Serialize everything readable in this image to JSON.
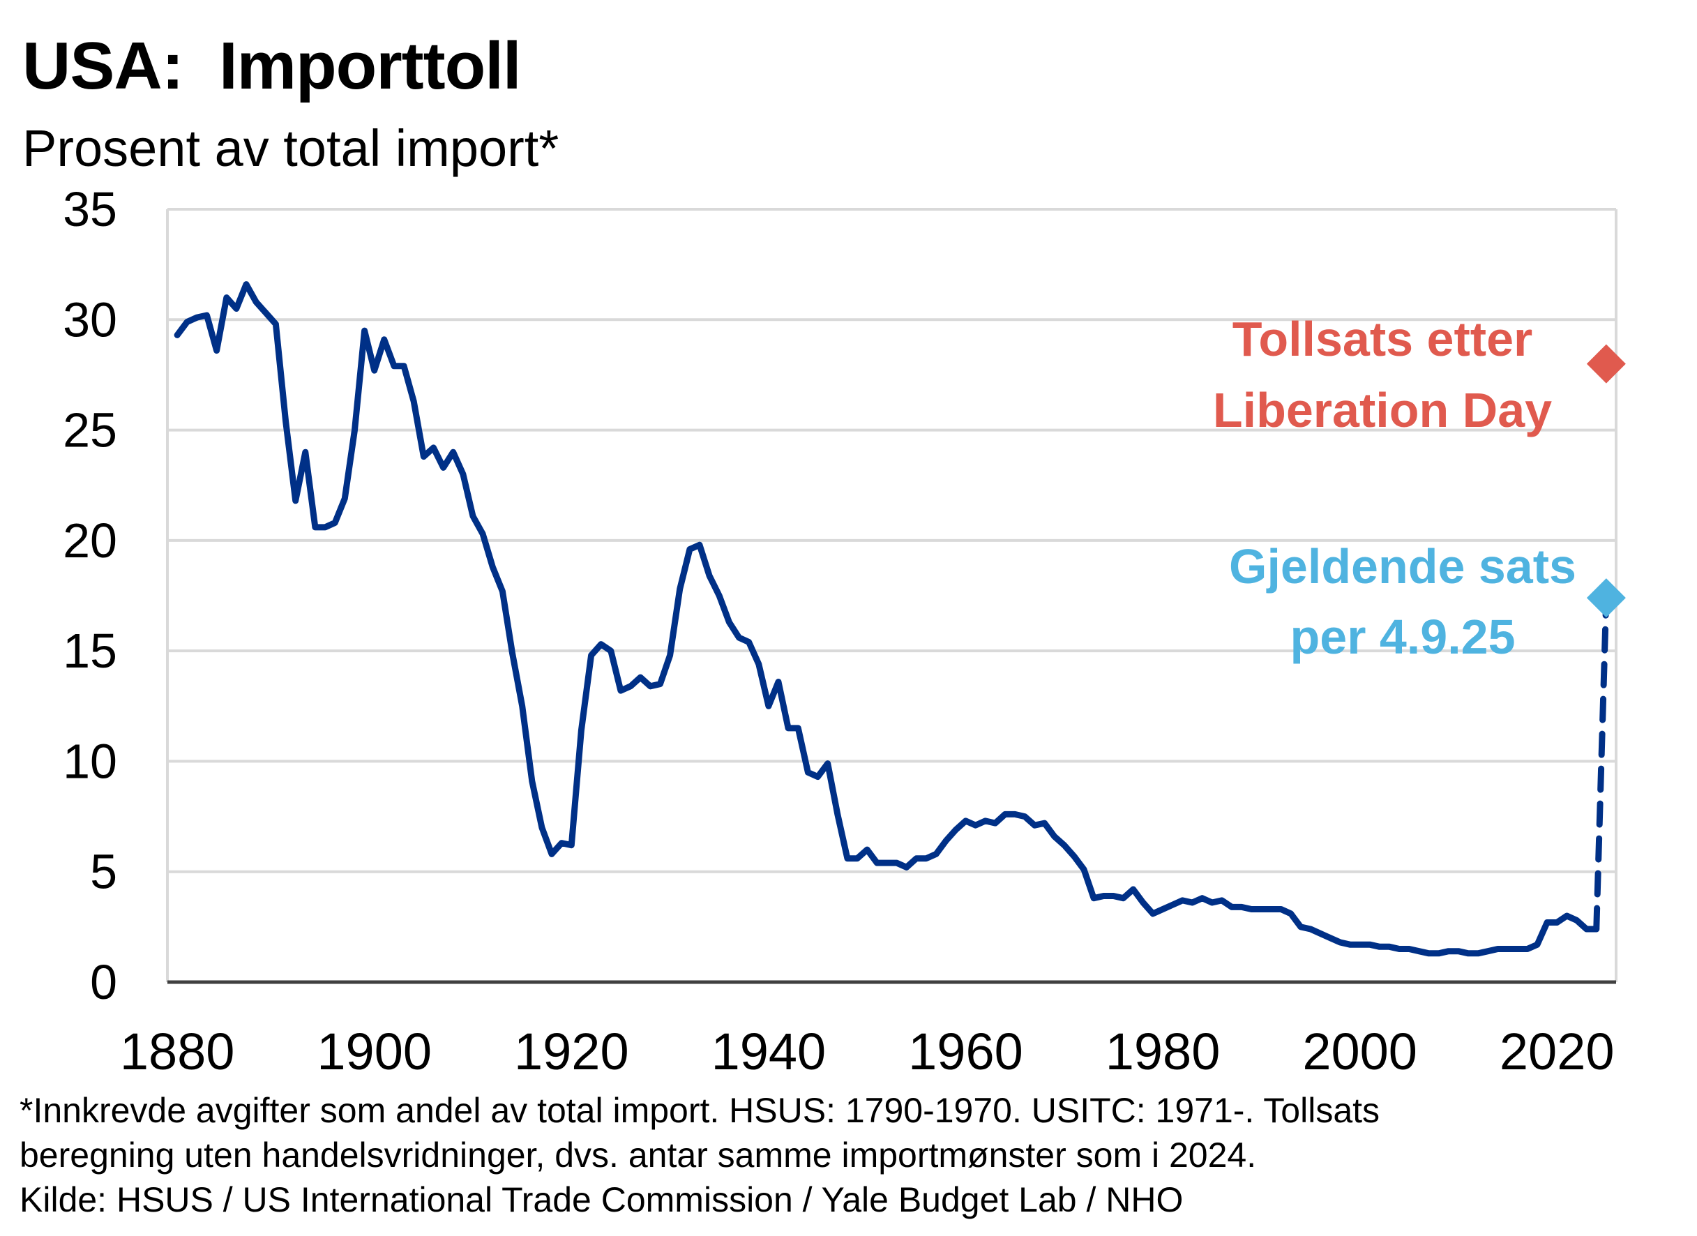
{
  "chart_data": {
    "type": "line",
    "title": "USA:  Importtoll",
    "subtitle": "Prosent av total import*",
    "xlim": [
      1880,
      2025
    ],
    "ylim": [
      0,
      35
    ],
    "x_ticks": [
      "1880",
      "1900",
      "1920",
      "1940",
      "1960",
      "1980",
      "2000",
      "2020"
    ],
    "y_ticks": [
      "0",
      "5",
      "10",
      "15",
      "20",
      "25",
      "30",
      "35"
    ],
    "grid": true,
    "series": [
      {
        "color": "#003087",
        "points": [
          [
            1880,
            29.3
          ],
          [
            1881,
            29.9
          ],
          [
            1882,
            30.1
          ],
          [
            1883,
            30.2
          ],
          [
            1884,
            28.6
          ],
          [
            1885,
            31.0
          ],
          [
            1886,
            30.5
          ],
          [
            1887,
            31.6
          ],
          [
            1888,
            30.8
          ],
          [
            1889,
            30.3
          ],
          [
            1890,
            29.8
          ],
          [
            1891,
            25.4
          ],
          [
            1892,
            21.8
          ],
          [
            1893,
            24.0
          ],
          [
            1894,
            20.6
          ],
          [
            1895,
            20.6
          ],
          [
            1896,
            20.8
          ],
          [
            1897,
            21.9
          ],
          [
            1898,
            25.0
          ],
          [
            1899,
            29.5
          ],
          [
            1900,
            27.7
          ],
          [
            1901,
            29.1
          ],
          [
            1902,
            27.9
          ],
          [
            1903,
            27.9
          ],
          [
            1904,
            26.3
          ],
          [
            1905,
            23.8
          ],
          [
            1906,
            24.2
          ],
          [
            1907,
            23.3
          ],
          [
            1908,
            24.0
          ],
          [
            1909,
            23.0
          ],
          [
            1910,
            21.1
          ],
          [
            1911,
            20.3
          ],
          [
            1912,
            18.8
          ],
          [
            1913,
            17.7
          ],
          [
            1914,
            14.9
          ],
          [
            1915,
            12.5
          ],
          [
            1916,
            9.1
          ],
          [
            1917,
            7.0
          ],
          [
            1918,
            5.8
          ],
          [
            1919,
            6.3
          ],
          [
            1920,
            6.2
          ],
          [
            1921,
            11.4
          ],
          [
            1922,
            14.8
          ],
          [
            1923,
            15.3
          ],
          [
            1924,
            15.0
          ],
          [
            1925,
            13.2
          ],
          [
            1926,
            13.4
          ],
          [
            1927,
            13.8
          ],
          [
            1928,
            13.4
          ],
          [
            1929,
            13.5
          ],
          [
            1930,
            14.8
          ],
          [
            1931,
            17.8
          ],
          [
            1932,
            19.6
          ],
          [
            1933,
            19.8
          ],
          [
            1934,
            18.4
          ],
          [
            1935,
            17.5
          ],
          [
            1936,
            16.3
          ],
          [
            1937,
            15.6
          ],
          [
            1938,
            15.4
          ],
          [
            1939,
            14.4
          ],
          [
            1940,
            12.5
          ],
          [
            1941,
            13.6
          ],
          [
            1942,
            11.5
          ],
          [
            1943,
            11.5
          ],
          [
            1944,
            9.5
          ],
          [
            1945,
            9.3
          ],
          [
            1946,
            9.9
          ],
          [
            1947,
            7.6
          ],
          [
            1948,
            5.6
          ],
          [
            1949,
            5.6
          ],
          [
            1950,
            6.0
          ],
          [
            1951,
            5.4
          ],
          [
            1952,
            5.4
          ],
          [
            1953,
            5.4
          ],
          [
            1954,
            5.2
          ],
          [
            1955,
            5.6
          ],
          [
            1956,
            5.6
          ],
          [
            1957,
            5.8
          ],
          [
            1958,
            6.4
          ],
          [
            1959,
            6.9
          ],
          [
            1960,
            7.3
          ],
          [
            1961,
            7.1
          ],
          [
            1962,
            7.3
          ],
          [
            1963,
            7.2
          ],
          [
            1964,
            7.6
          ],
          [
            1965,
            7.6
          ],
          [
            1966,
            7.5
          ],
          [
            1967,
            7.1
          ],
          [
            1968,
            7.2
          ],
          [
            1969,
            6.6
          ],
          [
            1970,
            6.2
          ],
          [
            1971,
            5.7
          ],
          [
            1972,
            5.1
          ],
          [
            1973,
            3.8
          ],
          [
            1974,
            3.9
          ],
          [
            1975,
            3.9
          ],
          [
            1976,
            3.8
          ],
          [
            1977,
            4.2
          ],
          [
            1978,
            3.6
          ],
          [
            1979,
            3.1
          ],
          [
            1980,
            3.3
          ],
          [
            1981,
            3.5
          ],
          [
            1982,
            3.7
          ],
          [
            1983,
            3.6
          ],
          [
            1984,
            3.8
          ],
          [
            1985,
            3.6
          ],
          [
            1986,
            3.7
          ],
          [
            1987,
            3.4
          ],
          [
            1988,
            3.4
          ],
          [
            1989,
            3.3
          ],
          [
            1990,
            3.3
          ],
          [
            1991,
            3.3
          ],
          [
            1992,
            3.3
          ],
          [
            1993,
            3.1
          ],
          [
            1994,
            2.5
          ],
          [
            1995,
            2.4
          ],
          [
            1996,
            2.2
          ],
          [
            1997,
            2.0
          ],
          [
            1998,
            1.8
          ],
          [
            1999,
            1.7
          ],
          [
            2000,
            1.7
          ],
          [
            2001,
            1.7
          ],
          [
            2002,
            1.6
          ],
          [
            2003,
            1.6
          ],
          [
            2004,
            1.5
          ],
          [
            2005,
            1.5
          ],
          [
            2006,
            1.4
          ],
          [
            2007,
            1.3
          ],
          [
            2008,
            1.3
          ],
          [
            2009,
            1.4
          ],
          [
            2010,
            1.4
          ],
          [
            2011,
            1.3
          ],
          [
            2012,
            1.3
          ],
          [
            2013,
            1.4
          ],
          [
            2014,
            1.5
          ],
          [
            2015,
            1.5
          ],
          [
            2016,
            1.5
          ],
          [
            2017,
            1.5
          ],
          [
            2018,
            1.7
          ],
          [
            2019,
            2.7
          ],
          [
            2020,
            2.7
          ],
          [
            2021,
            3.0
          ],
          [
            2022,
            2.8
          ],
          [
            2023,
            2.4
          ],
          [
            2024,
            2.4
          ]
        ]
      }
    ],
    "projection": {
      "color": "#003087",
      "style": "dashed",
      "from": [
        2024,
        2.4
      ],
      "to": [
        2025,
        17.4
      ]
    },
    "markers": [
      {
        "label": [
          "Tollsats etter",
          "Liberation Day"
        ],
        "x": 2025,
        "y": 28.0,
        "color": "#E05A4E"
      },
      {
        "label": [
          "Gjeldende sats",
          "per 4.9.25"
        ],
        "x": 2025,
        "y": 17.4,
        "color": "#4FB3E0"
      }
    ]
  },
  "footnote": [
    "*Innkrevde avgifter som andel av total import. HSUS: 1790-1970. USITC: 1971-.  Tollsats",
    "beregning uten handelsvridninger, dvs. antar samme importmønster som i 2024.",
    "Kilde: HSUS / US International Trade Commission / Yale Budget Lab / NHO"
  ]
}
